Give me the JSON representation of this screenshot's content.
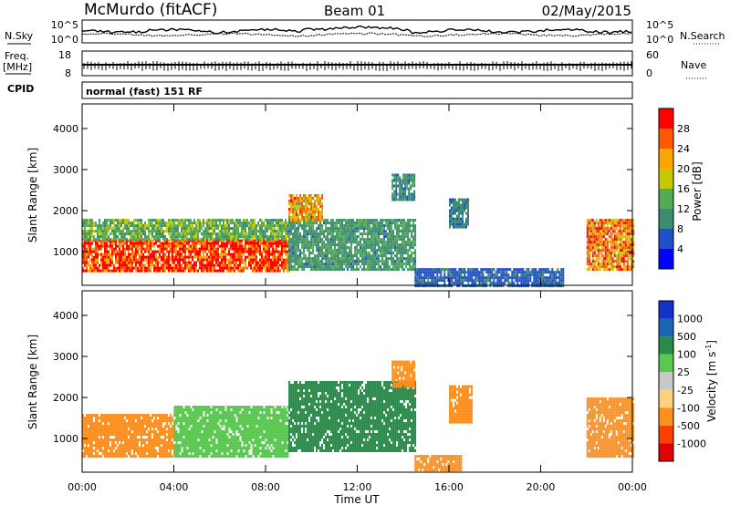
{
  "header": {
    "site": "McMurdo (fitACF)",
    "beam": "Beam 01",
    "date": "02/May/2015"
  },
  "panel_labels": {
    "nsky": "N.Sky",
    "nsearch": "N.Search",
    "freq_line1": "Freq.",
    "freq_line2": "[MHz]",
    "nave": "Nave",
    "cpid": "CPID",
    "cpid_value": "normal (fast) 151 RF"
  },
  "noise_axis": {
    "left_ticks": [
      "10^5",
      "10^0"
    ],
    "right_ticks": [
      "10^5",
      "10^0"
    ]
  },
  "freq_axis": {
    "left_ticks": [
      "18",
      "8"
    ],
    "right_ticks": [
      "60",
      "0"
    ]
  },
  "colors": {
    "power": [
      "#0000ff",
      "#2050c8",
      "#3c8c6e",
      "#55aa55",
      "#c8c800",
      "#ffa500",
      "#ff5a00",
      "#ff0000"
    ],
    "velocity": [
      "#e00000",
      "#ff4000",
      "#ff9020",
      "#ffd080",
      "#c8c8c8",
      "#5ac850",
      "#2a8a4a",
      "#1e64b4",
      "#1432c8"
    ]
  },
  "chart_data": [
    {
      "type": "heatmap",
      "title": "Power",
      "xlabel": "",
      "ylabel": "Slant Range [km]",
      "x_ticks": [
        "00:00",
        "04:00",
        "08:00",
        "12:00",
        "16:00",
        "20:00",
        "00:00"
      ],
      "y_ticks": [
        "1000",
        "2000",
        "3000",
        "4000"
      ],
      "xlim_hours": [
        0,
        24
      ],
      "ylim_km": [
        180,
        4600
      ],
      "colorbar": {
        "label": "Power [dB]",
        "ticks": [
          "4",
          "8",
          "12",
          "16",
          "20",
          "24",
          "28"
        ],
        "range": [
          0,
          32
        ]
      },
      "regions": [
        {
          "t0": 0.0,
          "t1": 9.0,
          "r0": 550,
          "r1": 1300,
          "value": 28
        },
        {
          "t0": 0.0,
          "t1": 9.0,
          "r0": 1300,
          "r1": 1800,
          "value": 14
        },
        {
          "t0": 9.0,
          "t1": 14.5,
          "r0": 600,
          "r1": 1800,
          "value": 11
        },
        {
          "t0": 9.0,
          "t1": 10.5,
          "r0": 1800,
          "r1": 2400,
          "value": 22
        },
        {
          "t0": 13.5,
          "t1": 14.5,
          "r0": 2300,
          "r1": 2900,
          "value": 10
        },
        {
          "t0": 16.0,
          "t1": 16.8,
          "r0": 1600,
          "r1": 2300,
          "value": 9
        },
        {
          "t0": 14.5,
          "t1": 21.0,
          "r0": 200,
          "r1": 600,
          "value": 7
        },
        {
          "t0": 22.0,
          "t1": 24.0,
          "r0": 600,
          "r1": 1800,
          "value": 24
        }
      ]
    },
    {
      "type": "heatmap",
      "title": "Velocity",
      "xlabel": "Time UT",
      "ylabel": "Slant Range [km]",
      "x_ticks": [
        "00:00",
        "04:00",
        "08:00",
        "12:00",
        "16:00",
        "20:00",
        "00:00"
      ],
      "y_ticks": [
        "1000",
        "2000",
        "3000",
        "4000"
      ],
      "xlim_hours": [
        0,
        24
      ],
      "ylim_km": [
        180,
        4600
      ],
      "colorbar": {
        "label": "Velocity [m s^-1]",
        "ticks": [
          "1000",
          "500",
          "100",
          "25",
          "-25",
          "-100",
          "-500",
          "-1000"
        ],
        "range": [
          -1000,
          1000
        ]
      },
      "regions": [
        {
          "t0": 0.0,
          "t1": 4.0,
          "r0": 600,
          "r1": 1600,
          "value": -300
        },
        {
          "t0": 4.0,
          "t1": 9.0,
          "r0": 600,
          "r1": 1800,
          "value": 60
        },
        {
          "t0": 9.0,
          "t1": 14.5,
          "r0": 700,
          "r1": 2400,
          "value": 150
        },
        {
          "t0": 13.5,
          "t1": 14.5,
          "r0": 2300,
          "r1": 2900,
          "value": -200
        },
        {
          "t0": 16.0,
          "t1": 17.0,
          "r0": 1400,
          "r1": 2300,
          "value": -300
        },
        {
          "t0": 14.5,
          "t1": 16.5,
          "r0": 250,
          "r1": 600,
          "value": -250
        },
        {
          "t0": 22.0,
          "t1": 24.0,
          "r0": 600,
          "r1": 2000,
          "value": -350
        }
      ]
    }
  ]
}
